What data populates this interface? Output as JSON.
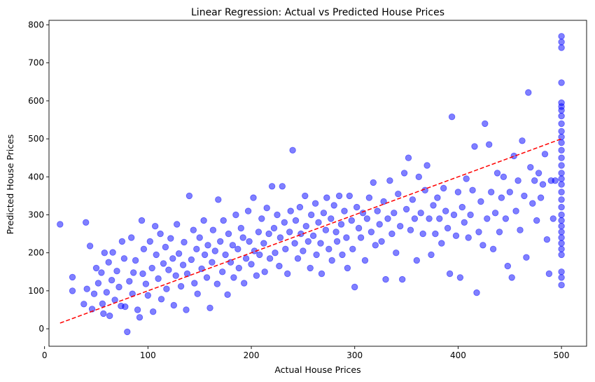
{
  "chart_data": {
    "type": "scatter",
    "title": "Linear Regression: Actual vs Predicted House Prices",
    "xlabel": "Actual House Prices",
    "ylabel": "Predicted House Prices",
    "xlim": [
      4.3,
      524.3
    ],
    "ylim": [
      -46,
      812
    ],
    "x_ticks": [
      0,
      100,
      200,
      300,
      400,
      500
    ],
    "y_ticks": [
      0,
      100,
      200,
      300,
      400,
      500,
      600,
      700,
      800
    ],
    "grid": false,
    "legend": "none",
    "point_color": "#0000ff",
    "point_opacity": 0.5,
    "reference_line": {
      "style": "dashed",
      "color": "#ff0000",
      "from": [
        15,
        15
      ],
      "to": [
        500,
        500
      ]
    },
    "points": [
      [
        15,
        275
      ],
      [
        27,
        136
      ],
      [
        27,
        100
      ],
      [
        40,
        280
      ],
      [
        44,
        218
      ],
      [
        38,
        65
      ],
      [
        41,
        105
      ],
      [
        46,
        52
      ],
      [
        48,
        92
      ],
      [
        50,
        160
      ],
      [
        52,
        120
      ],
      [
        55,
        148
      ],
      [
        56,
        66
      ],
      [
        57,
        40
      ],
      [
        58,
        200
      ],
      [
        60,
        96
      ],
      [
        62,
        175
      ],
      [
        63,
        34
      ],
      [
        65,
        128
      ],
      [
        66,
        201
      ],
      [
        68,
        76
      ],
      [
        70,
        152
      ],
      [
        72,
        110
      ],
      [
        74,
        60
      ],
      [
        75,
        230
      ],
      [
        77,
        185
      ],
      [
        78,
        58
      ],
      [
        80,
        -8
      ],
      [
        82,
        125
      ],
      [
        84,
        240
      ],
      [
        85,
        92
      ],
      [
        86,
        148
      ],
      [
        88,
        180
      ],
      [
        90,
        50
      ],
      [
        92,
        30
      ],
      [
        94,
        285
      ],
      [
        95,
        145
      ],
      [
        96,
        210
      ],
      [
        98,
        118
      ],
      [
        100,
        88
      ],
      [
        102,
        230
      ],
      [
        104,
        160
      ],
      [
        105,
        45
      ],
      [
        107,
        270
      ],
      [
        108,
        195
      ],
      [
        110,
        132
      ],
      [
        112,
        250
      ],
      [
        113,
        78
      ],
      [
        115,
        172
      ],
      [
        117,
        215
      ],
      [
        118,
        105
      ],
      [
        120,
        155
      ],
      [
        122,
        238
      ],
      [
        124,
        185
      ],
      [
        125,
        62
      ],
      [
        127,
        140
      ],
      [
        128,
        275
      ],
      [
        130,
        198
      ],
      [
        132,
        112
      ],
      [
        134,
        168
      ],
      [
        135,
        228
      ],
      [
        137,
        50
      ],
      [
        138,
        145
      ],
      [
        140,
        350
      ],
      [
        142,
        182
      ],
      [
        144,
        260
      ],
      [
        145,
        120
      ],
      [
        147,
        210
      ],
      [
        148,
        92
      ],
      [
        150,
        240
      ],
      [
        152,
        158
      ],
      [
        154,
        285
      ],
      [
        155,
        195
      ],
      [
        157,
        135
      ],
      [
        158,
        220
      ],
      [
        160,
        55
      ],
      [
        162,
        175
      ],
      [
        163,
        260
      ],
      [
        165,
        205
      ],
      [
        167,
        118
      ],
      [
        168,
        340
      ],
      [
        170,
        230
      ],
      [
        172,
        150
      ],
      [
        173,
        285
      ],
      [
        175,
        195
      ],
      [
        177,
        90
      ],
      [
        178,
        250
      ],
      [
        180,
        175
      ],
      [
        182,
        220
      ],
      [
        183,
        135
      ],
      [
        185,
        300
      ],
      [
        187,
        210
      ],
      [
        188,
        160
      ],
      [
        190,
        265
      ],
      [
        192,
        240
      ],
      [
        193,
        120
      ],
      [
        195,
        185
      ],
      [
        197,
        310
      ],
      [
        198,
        230
      ],
      [
        200,
        170
      ],
      [
        202,
        345
      ],
      [
        203,
        205
      ],
      [
        205,
        140
      ],
      [
        207,
        255
      ],
      [
        208,
        195
      ],
      [
        210,
        290
      ],
      [
        212,
        225
      ],
      [
        213,
        150
      ],
      [
        215,
        318
      ],
      [
        217,
        250
      ],
      [
        218,
        185
      ],
      [
        220,
        375
      ],
      [
        222,
        265
      ],
      [
        223,
        200
      ],
      [
        225,
        300
      ],
      [
        227,
        165
      ],
      [
        228,
        240
      ],
      [
        230,
        375
      ],
      [
        232,
        280
      ],
      [
        233,
        210
      ],
      [
        235,
        145
      ],
      [
        237,
        255
      ],
      [
        238,
        310
      ],
      [
        240,
        470
      ],
      [
        242,
        225
      ],
      [
        243,
        285
      ],
      [
        245,
        185
      ],
      [
        247,
        320
      ],
      [
        248,
        250
      ],
      [
        250,
        205
      ],
      [
        252,
        350
      ],
      [
        253,
        270
      ],
      [
        255,
        230
      ],
      [
        257,
        160
      ],
      [
        258,
        300
      ],
      [
        260,
        245
      ],
      [
        262,
        330
      ],
      [
        263,
        195
      ],
      [
        265,
        280
      ],
      [
        267,
        225
      ],
      [
        268,
        145
      ],
      [
        270,
        305
      ],
      [
        272,
        260
      ],
      [
        273,
        345
      ],
      [
        275,
        210
      ],
      [
        277,
        290
      ],
      [
        278,
        180
      ],
      [
        280,
        325
      ],
      [
        282,
        255
      ],
      [
        283,
        230
      ],
      [
        285,
        350
      ],
      [
        287,
        275
      ],
      [
        288,
        195
      ],
      [
        290,
        310
      ],
      [
        292,
        240
      ],
      [
        293,
        160
      ],
      [
        295,
        350
      ],
      [
        297,
        285
      ],
      [
        298,
        210
      ],
      [
        300,
        110
      ],
      [
        302,
        320
      ],
      [
        304,
        265
      ],
      [
        306,
        240
      ],
      [
        308,
        305
      ],
      [
        310,
        180
      ],
      [
        312,
        290
      ],
      [
        314,
        345
      ],
      [
        316,
        255
      ],
      [
        318,
        385
      ],
      [
        320,
        220
      ],
      [
        322,
        310
      ],
      [
        324,
        275
      ],
      [
        326,
        230
      ],
      [
        328,
        335
      ],
      [
        330,
        130
      ],
      [
        332,
        290
      ],
      [
        334,
        390
      ],
      [
        336,
        250
      ],
      [
        338,
        305
      ],
      [
        340,
        200
      ],
      [
        342,
        355
      ],
      [
        344,
        270
      ],
      [
        346,
        130
      ],
      [
        348,
        410
      ],
      [
        350,
        315
      ],
      [
        352,
        450
      ],
      [
        354,
        260
      ],
      [
        356,
        340
      ],
      [
        358,
        290
      ],
      [
        360,
        180
      ],
      [
        362,
        400
      ],
      [
        364,
        305
      ],
      [
        366,
        250
      ],
      [
        368,
        365
      ],
      [
        370,
        430
      ],
      [
        372,
        290
      ],
      [
        374,
        195
      ],
      [
        376,
        325
      ],
      [
        378,
        250
      ],
      [
        380,
        345
      ],
      [
        382,
        290
      ],
      [
        384,
        225
      ],
      [
        386,
        370
      ],
      [
        388,
        310
      ],
      [
        390,
        265
      ],
      [
        392,
        145
      ],
      [
        394,
        558
      ],
      [
        396,
        300
      ],
      [
        398,
        245
      ],
      [
        400,
        360
      ],
      [
        402,
        135
      ],
      [
        404,
        320
      ],
      [
        406,
        280
      ],
      [
        408,
        395
      ],
      [
        410,
        240
      ],
      [
        412,
        300
      ],
      [
        414,
        365
      ],
      [
        416,
        480
      ],
      [
        418,
        95
      ],
      [
        420,
        255
      ],
      [
        422,
        335
      ],
      [
        424,
        220
      ],
      [
        426,
        540
      ],
      [
        428,
        290
      ],
      [
        430,
        485
      ],
      [
        432,
        360
      ],
      [
        434,
        210
      ],
      [
        436,
        305
      ],
      [
        438,
        410
      ],
      [
        440,
        255
      ],
      [
        442,
        345
      ],
      [
        444,
        400
      ],
      [
        446,
        290
      ],
      [
        448,
        165
      ],
      [
        450,
        360
      ],
      [
        452,
        135
      ],
      [
        454,
        455
      ],
      [
        456,
        310
      ],
      [
        458,
        390
      ],
      [
        460,
        260
      ],
      [
        462,
        495
      ],
      [
        464,
        350
      ],
      [
        466,
        188
      ],
      [
        468,
        622
      ],
      [
        470,
        425
      ],
      [
        472,
        330
      ],
      [
        474,
        390
      ],
      [
        476,
        285
      ],
      [
        478,
        410
      ],
      [
        480,
        345
      ],
      [
        482,
        380
      ],
      [
        484,
        460
      ],
      [
        486,
        235
      ],
      [
        488,
        145
      ],
      [
        490,
        390
      ],
      [
        492,
        290
      ],
      [
        494,
        390
      ],
      [
        500,
        770
      ],
      [
        500,
        755
      ],
      [
        500,
        740
      ],
      [
        500,
        648
      ],
      [
        500,
        595
      ],
      [
        500,
        585
      ],
      [
        500,
        575
      ],
      [
        500,
        560
      ],
      [
        500,
        540
      ],
      [
        500,
        520
      ],
      [
        500,
        505
      ],
      [
        500,
        490
      ],
      [
        500,
        470
      ],
      [
        500,
        450
      ],
      [
        500,
        430
      ],
      [
        500,
        410
      ],
      [
        500,
        395
      ],
      [
        500,
        380
      ],
      [
        500,
        360
      ],
      [
        500,
        340
      ],
      [
        500,
        320
      ],
      [
        500,
        300
      ],
      [
        500,
        285
      ],
      [
        500,
        270
      ],
      [
        500,
        255
      ],
      [
        500,
        240
      ],
      [
        500,
        225
      ],
      [
        500,
        210
      ],
      [
        500,
        195
      ],
      [
        500,
        150
      ],
      [
        500,
        135
      ],
      [
        500,
        115
      ]
    ]
  }
}
